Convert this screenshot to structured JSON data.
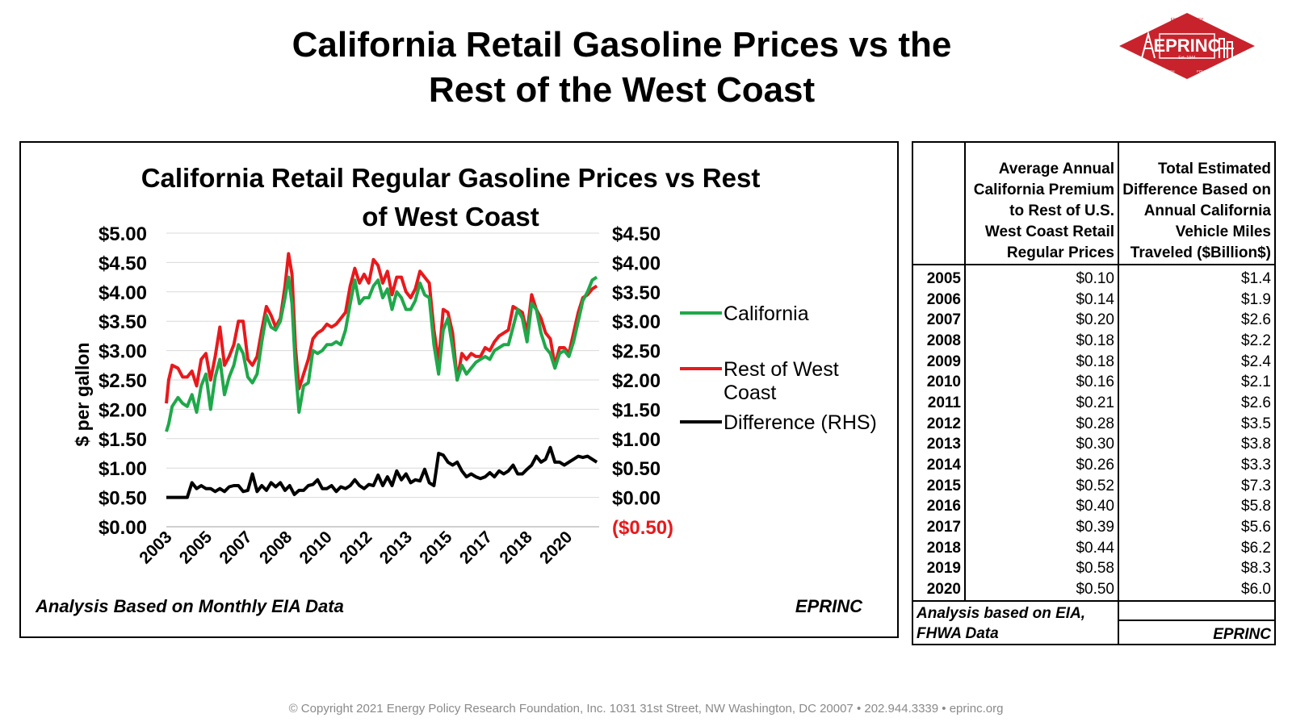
{
  "page": {
    "title_line1": "California Retail Gasoline Prices vs the",
    "title_line2": "Rest of the West Coast",
    "copyright": "© Copyright 2021 Energy Policy Research Foundation, Inc. 1031 31st Street, NW Washington, DC 20007 • 202.944.3339 • eprinc.org"
  },
  "logo": {
    "name": "EPRINC",
    "est": "Est. 1944",
    "arc_top": "ENERGY POLICY",
    "arc_left": "RESEARCH",
    "arc_right": "FOUNDATION INC.",
    "color": "#c8232c"
  },
  "chart_data": {
    "type": "line",
    "title_line1": "California Retail Regular Gasoline Prices vs Rest",
    "title_line2": "of West Coast",
    "ylabel": "$ per gallon",
    "ylim": [
      0,
      5
    ],
    "y2lim": [
      -0.5,
      4.5
    ],
    "y_ticks": [
      "$0.00",
      "$0.50",
      "$1.00",
      "$1.50",
      "$2.00",
      "$2.50",
      "$3.00",
      "$3.50",
      "$4.00",
      "$4.50",
      "$5.00"
    ],
    "y2_ticks": [
      "($0.50)",
      "$0.00",
      "$0.50",
      "$1.00",
      "$1.50",
      "$2.00",
      "$2.50",
      "$3.00",
      "$3.50",
      "$4.00",
      "$4.50"
    ],
    "x_ticks": [
      "2003",
      "2005",
      "2007",
      "2008",
      "2010",
      "2012",
      "2013",
      "2015",
      "2017",
      "2018",
      "2020"
    ],
    "xlim": [
      2003.0,
      2021.6
    ],
    "grid": true,
    "legend_position": "right",
    "note": "Analysis Based on Monthly EIA Data",
    "brand": "EPRINC",
    "series": [
      {
        "name": "California",
        "color": "#1fa84a",
        "axis": "left",
        "x": [
          2003.0,
          2003.1,
          2003.25,
          2003.5,
          2003.7,
          2003.9,
          2004.1,
          2004.3,
          2004.5,
          2004.7,
          2004.9,
          2005.1,
          2005.3,
          2005.5,
          2005.7,
          2005.9,
          2006.1,
          2006.3,
          2006.5,
          2006.7,
          2006.9,
          2007.1,
          2007.3,
          2007.5,
          2007.7,
          2007.9,
          2008.1,
          2008.25,
          2008.4,
          2008.55,
          2008.7,
          2008.9,
          2009.1,
          2009.3,
          2009.5,
          2009.7,
          2009.9,
          2010.1,
          2010.3,
          2010.5,
          2010.7,
          2010.9,
          2011.1,
          2011.3,
          2011.5,
          2011.7,
          2011.9,
          2012.1,
          2012.3,
          2012.5,
          2012.7,
          2012.9,
          2013.1,
          2013.3,
          2013.5,
          2013.7,
          2013.9,
          2014.1,
          2014.3,
          2014.5,
          2014.7,
          2014.9,
          2015.1,
          2015.3,
          2015.5,
          2015.7,
          2015.9,
          2016.1,
          2016.3,
          2016.5,
          2016.7,
          2016.9,
          2017.1,
          2017.3,
          2017.5,
          2017.7,
          2017.9,
          2018.1,
          2018.3,
          2018.5,
          2018.7,
          2018.9,
          2019.1,
          2019.3,
          2019.5,
          2019.7,
          2019.9,
          2020.1,
          2020.3,
          2020.5,
          2020.7,
          2020.9,
          2021.1,
          2021.3,
          2021.5
        ],
        "y": [
          1.62,
          1.75,
          2.05,
          2.2,
          2.1,
          2.05,
          2.25,
          1.95,
          2.4,
          2.6,
          2.0,
          2.55,
          2.85,
          2.25,
          2.55,
          2.75,
          3.1,
          2.95,
          2.55,
          2.45,
          2.6,
          3.15,
          3.6,
          3.4,
          3.35,
          3.5,
          3.9,
          4.25,
          3.8,
          2.7,
          1.95,
          2.4,
          2.45,
          3.0,
          2.95,
          3.0,
          3.1,
          3.1,
          3.15,
          3.1,
          3.35,
          3.8,
          4.2,
          3.8,
          3.9,
          3.9,
          4.1,
          4.2,
          3.9,
          4.05,
          3.7,
          4.0,
          3.9,
          3.7,
          3.7,
          3.85,
          4.15,
          3.95,
          3.9,
          3.1,
          2.6,
          3.35,
          3.55,
          3.05,
          2.5,
          2.75,
          2.6,
          2.7,
          2.8,
          2.85,
          2.9,
          2.85,
          3.0,
          3.05,
          3.1,
          3.1,
          3.4,
          3.7,
          3.55,
          3.15,
          3.8,
          3.7,
          3.3,
          3.05,
          2.95,
          2.7,
          2.95,
          3.0,
          2.9,
          3.15,
          3.5,
          3.85,
          4.0,
          4.2,
          4.25
        ]
      },
      {
        "name": "Rest of West Coast",
        "color": "#e8191c",
        "axis": "left",
        "x": [
          2003.0,
          2003.1,
          2003.25,
          2003.5,
          2003.7,
          2003.9,
          2004.1,
          2004.3,
          2004.5,
          2004.7,
          2004.9,
          2005.1,
          2005.3,
          2005.5,
          2005.7,
          2005.9,
          2006.1,
          2006.3,
          2006.5,
          2006.7,
          2006.9,
          2007.1,
          2007.3,
          2007.5,
          2007.7,
          2007.9,
          2008.1,
          2008.25,
          2008.4,
          2008.55,
          2008.7,
          2008.9,
          2009.1,
          2009.3,
          2009.5,
          2009.7,
          2009.9,
          2010.1,
          2010.3,
          2010.5,
          2010.7,
          2010.9,
          2011.1,
          2011.3,
          2011.5,
          2011.7,
          2011.9,
          2012.1,
          2012.3,
          2012.5,
          2012.7,
          2012.9,
          2013.1,
          2013.3,
          2013.5,
          2013.7,
          2013.9,
          2014.1,
          2014.3,
          2014.5,
          2014.7,
          2014.9,
          2015.1,
          2015.3,
          2015.5,
          2015.7,
          2015.9,
          2016.1,
          2016.3,
          2016.5,
          2016.7,
          2016.9,
          2017.1,
          2017.3,
          2017.5,
          2017.7,
          2017.9,
          2018.1,
          2018.3,
          2018.5,
          2018.7,
          2018.9,
          2019.1,
          2019.3,
          2019.5,
          2019.7,
          2019.9,
          2020.1,
          2020.3,
          2020.5,
          2020.7,
          2020.9,
          2021.1,
          2021.3,
          2021.5
        ],
        "y": [
          2.1,
          2.5,
          2.75,
          2.7,
          2.55,
          2.55,
          2.65,
          2.4,
          2.85,
          2.95,
          2.5,
          2.9,
          3.4,
          2.75,
          2.9,
          3.1,
          3.5,
          3.5,
          2.85,
          2.75,
          2.9,
          3.35,
          3.75,
          3.6,
          3.4,
          3.55,
          4.1,
          4.65,
          4.3,
          3.05,
          2.35,
          2.6,
          2.85,
          3.2,
          3.3,
          3.35,
          3.45,
          3.4,
          3.45,
          3.55,
          3.65,
          4.1,
          4.4,
          4.15,
          4.3,
          4.15,
          4.55,
          4.45,
          4.15,
          4.35,
          3.95,
          4.25,
          4.25,
          4.0,
          3.9,
          4.05,
          4.35,
          4.25,
          4.15,
          3.35,
          2.8,
          3.7,
          3.65,
          3.3,
          2.5,
          2.95,
          2.85,
          2.95,
          2.9,
          2.9,
          3.05,
          3.0,
          3.15,
          3.25,
          3.3,
          3.35,
          3.75,
          3.7,
          3.65,
          3.3,
          3.95,
          3.7,
          3.55,
          3.3,
          3.2,
          2.75,
          3.05,
          3.05,
          2.95,
          3.3,
          3.65,
          3.9,
          3.95,
          4.05,
          4.1
        ]
      },
      {
        "name": "Difference (RHS)",
        "color": "#000000",
        "axis": "right",
        "x": [
          2003.0,
          2003.3,
          2003.6,
          2003.9,
          2004.1,
          2004.3,
          2004.5,
          2004.7,
          2004.9,
          2005.1,
          2005.3,
          2005.5,
          2005.7,
          2005.9,
          2006.1,
          2006.3,
          2006.5,
          2006.7,
          2006.9,
          2007.1,
          2007.3,
          2007.5,
          2007.7,
          2007.9,
          2008.1,
          2008.3,
          2008.5,
          2008.7,
          2008.9,
          2009.1,
          2009.3,
          2009.5,
          2009.7,
          2009.9,
          2010.1,
          2010.3,
          2010.5,
          2010.7,
          2010.9,
          2011.1,
          2011.3,
          2011.5,
          2011.7,
          2011.9,
          2012.1,
          2012.3,
          2012.5,
          2012.7,
          2012.9,
          2013.1,
          2013.3,
          2013.5,
          2013.7,
          2013.9,
          2014.1,
          2014.3,
          2014.5,
          2014.7,
          2014.9,
          2015.1,
          2015.3,
          2015.5,
          2015.7,
          2015.9,
          2016.1,
          2016.3,
          2016.5,
          2016.7,
          2016.9,
          2017.1,
          2017.3,
          2017.5,
          2017.7,
          2017.9,
          2018.1,
          2018.3,
          2018.5,
          2018.7,
          2018.9,
          2019.1,
          2019.3,
          2019.5,
          2019.7,
          2019.9,
          2020.1,
          2020.3,
          2020.5,
          2020.7,
          2020.9,
          2021.1,
          2021.3,
          2021.5
        ],
        "y": [
          0.0,
          0.0,
          0.0,
          0.0,
          0.25,
          0.15,
          0.2,
          0.15,
          0.15,
          0.1,
          0.15,
          0.1,
          0.18,
          0.2,
          0.2,
          0.1,
          0.12,
          0.4,
          0.1,
          0.2,
          0.12,
          0.25,
          0.18,
          0.25,
          0.12,
          0.2,
          0.05,
          0.12,
          0.12,
          0.2,
          0.22,
          0.3,
          0.15,
          0.15,
          0.2,
          0.1,
          0.18,
          0.15,
          0.2,
          0.3,
          0.2,
          0.15,
          0.22,
          0.2,
          0.38,
          0.2,
          0.35,
          0.2,
          0.45,
          0.3,
          0.4,
          0.25,
          0.3,
          0.28,
          0.48,
          0.25,
          0.2,
          0.75,
          0.72,
          0.6,
          0.55,
          0.6,
          0.45,
          0.35,
          0.4,
          0.35,
          0.32,
          0.35,
          0.42,
          0.35,
          0.45,
          0.4,
          0.45,
          0.55,
          0.4,
          0.4,
          0.48,
          0.55,
          0.7,
          0.6,
          0.65,
          0.85,
          0.6,
          0.6,
          0.55,
          0.6,
          0.65,
          0.7,
          0.68,
          0.7,
          0.65,
          0.6
        ]
      }
    ]
  },
  "table": {
    "col1_header": "",
    "col2_header": [
      "Average Annual",
      "California Premium",
      "to Rest of U.S.",
      "West Coast Retail",
      "Regular Prices"
    ],
    "col3_header": [
      "Total Estimated",
      "Difference Based on",
      "Annual California",
      "Vehicle Miles",
      "Traveled ($Billion$)"
    ],
    "rows": [
      {
        "year": "2005",
        "premium": "$0.10",
        "total": "$1.4"
      },
      {
        "year": "2006",
        "premium": "$0.14",
        "total": "$1.9"
      },
      {
        "year": "2007",
        "premium": "$0.20",
        "total": "$2.6"
      },
      {
        "year": "2008",
        "premium": "$0.18",
        "total": "$2.2"
      },
      {
        "year": "2009",
        "premium": "$0.18",
        "total": "$2.4"
      },
      {
        "year": "2010",
        "premium": "$0.16",
        "total": "$2.1"
      },
      {
        "year": "2011",
        "premium": "$0.21",
        "total": "$2.6"
      },
      {
        "year": "2012",
        "premium": "$0.28",
        "total": "$3.5"
      },
      {
        "year": "2013",
        "premium": "$0.30",
        "total": "$3.8"
      },
      {
        "year": "2014",
        "premium": "$0.26",
        "total": "$3.3"
      },
      {
        "year": "2015",
        "premium": "$0.52",
        "total": "$7.3"
      },
      {
        "year": "2016",
        "premium": "$0.40",
        "total": "$5.8"
      },
      {
        "year": "2017",
        "premium": "$0.39",
        "total": "$5.6"
      },
      {
        "year": "2018",
        "premium": "$0.44",
        "total": "$6.2"
      },
      {
        "year": "2019",
        "premium": "$0.58",
        "total": "$8.3"
      },
      {
        "year": "2020",
        "premium": "$0.50",
        "total": "$6.0"
      }
    ],
    "note_line1": "Analysis based on EIA,",
    "note_line2": "FHWA Data",
    "brand": "EPRINC"
  }
}
